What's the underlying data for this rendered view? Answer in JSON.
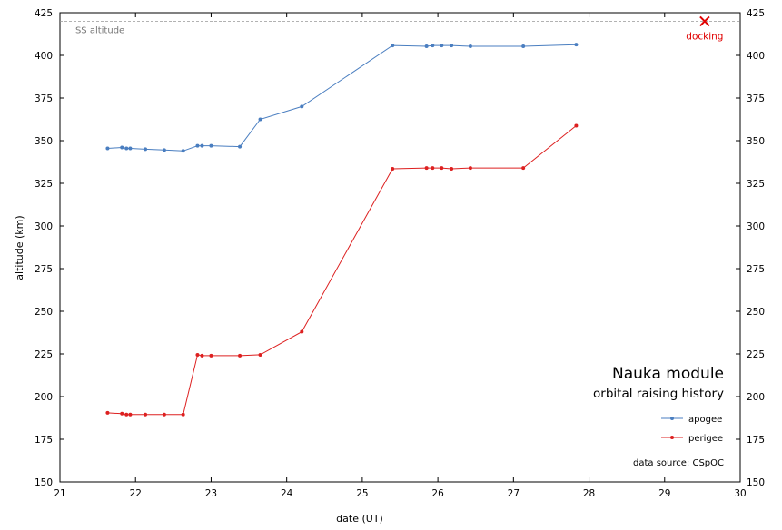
{
  "chart_data": {
    "type": "line",
    "title": "Nauka module",
    "subtitle": "orbital raising history",
    "xlabel": "date (UT)",
    "ylabel": "altitude (km)",
    "xlim": [
      21,
      30
    ],
    "ylim": [
      150,
      425
    ],
    "x_ticks": [
      21,
      22,
      23,
      24,
      25,
      26,
      27,
      28,
      29,
      30
    ],
    "y_ticks": [
      150,
      175,
      200,
      225,
      250,
      275,
      300,
      325,
      350,
      375,
      400,
      425
    ],
    "grid": false,
    "legend_position": "bottom-right",
    "source_note": "data source: CSpOC",
    "reference_line": {
      "label": "ISS altitude",
      "y": 420,
      "color": "#999999"
    },
    "marker": {
      "label": "docking",
      "x": 29.53,
      "y": 420,
      "color": "#e00000"
    },
    "series": [
      {
        "name": "apogee",
        "color": "#4a7ec0",
        "x": [
          21.63,
          21.82,
          21.88,
          21.93,
          22.13,
          22.38,
          22.63,
          22.82,
          22.88,
          23.0,
          23.38,
          23.65,
          24.2,
          25.4,
          25.85,
          25.93,
          26.05,
          26.18,
          26.43,
          27.13,
          27.83
        ],
        "y": [
          345.5,
          346,
          345.5,
          345.5,
          345,
          344.5,
          344,
          347,
          347,
          347,
          346.5,
          362.5,
          370,
          405.8,
          405.3,
          405.8,
          405.8,
          405.8,
          405.3,
          405.3,
          406.3
        ]
      },
      {
        "name": "perigee",
        "color": "#dd2020",
        "x": [
          21.63,
          21.82,
          21.88,
          21.93,
          22.13,
          22.38,
          22.63,
          22.82,
          22.88,
          23.0,
          23.38,
          23.65,
          24.2,
          25.4,
          25.85,
          25.93,
          26.05,
          26.18,
          26.43,
          27.13,
          27.83
        ],
        "y": [
          190.5,
          190,
          189.5,
          189.5,
          189.5,
          189.5,
          189.5,
          224.5,
          224,
          224,
          224,
          224.5,
          238,
          333.5,
          334,
          334,
          334,
          333.5,
          334,
          334,
          358.8
        ]
      }
    ]
  }
}
